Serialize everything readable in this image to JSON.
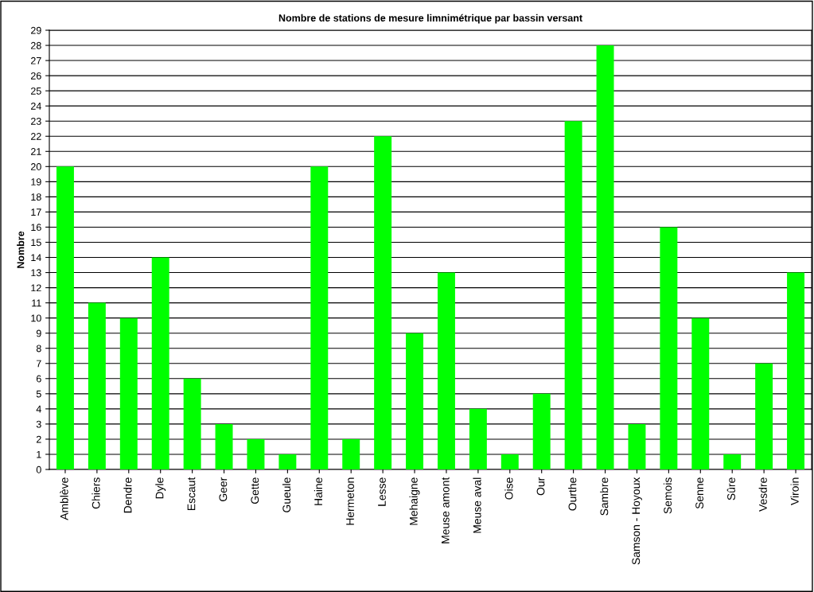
{
  "chart_data": {
    "type": "bar",
    "title": "Nombre de stations de mesure limnimétrique par bassin versant",
    "ylabel": "Nombre",
    "categories": [
      "Amblève",
      "Chiers",
      "Dendre",
      "Dyle",
      "Escaut",
      "Geer",
      "Gette",
      "Gueule",
      "Haine",
      "Hermeton",
      "Lesse",
      "Mehaigne",
      "Meuse amont",
      "Meuse aval",
      "Oise",
      "Our",
      "Ourthe",
      "Sambre",
      "Samson - Hoyoux",
      "Semois",
      "Senne",
      "Sûre",
      "Vesdre",
      "Viroin"
    ],
    "values": [
      20,
      11,
      10,
      14,
      6,
      3,
      2,
      1,
      20,
      2,
      22,
      9,
      13,
      4,
      1,
      5,
      23,
      28,
      3,
      16,
      10,
      1,
      7,
      13
    ],
    "color": "#00ff00",
    "ylim": [
      0,
      29
    ],
    "yticks": [
      0,
      1,
      2,
      3,
      4,
      5,
      6,
      7,
      8,
      9,
      10,
      11,
      12,
      13,
      14,
      15,
      16,
      17,
      18,
      19,
      20,
      21,
      22,
      23,
      24,
      25,
      26,
      27,
      28,
      29
    ],
    "grid": "y"
  }
}
